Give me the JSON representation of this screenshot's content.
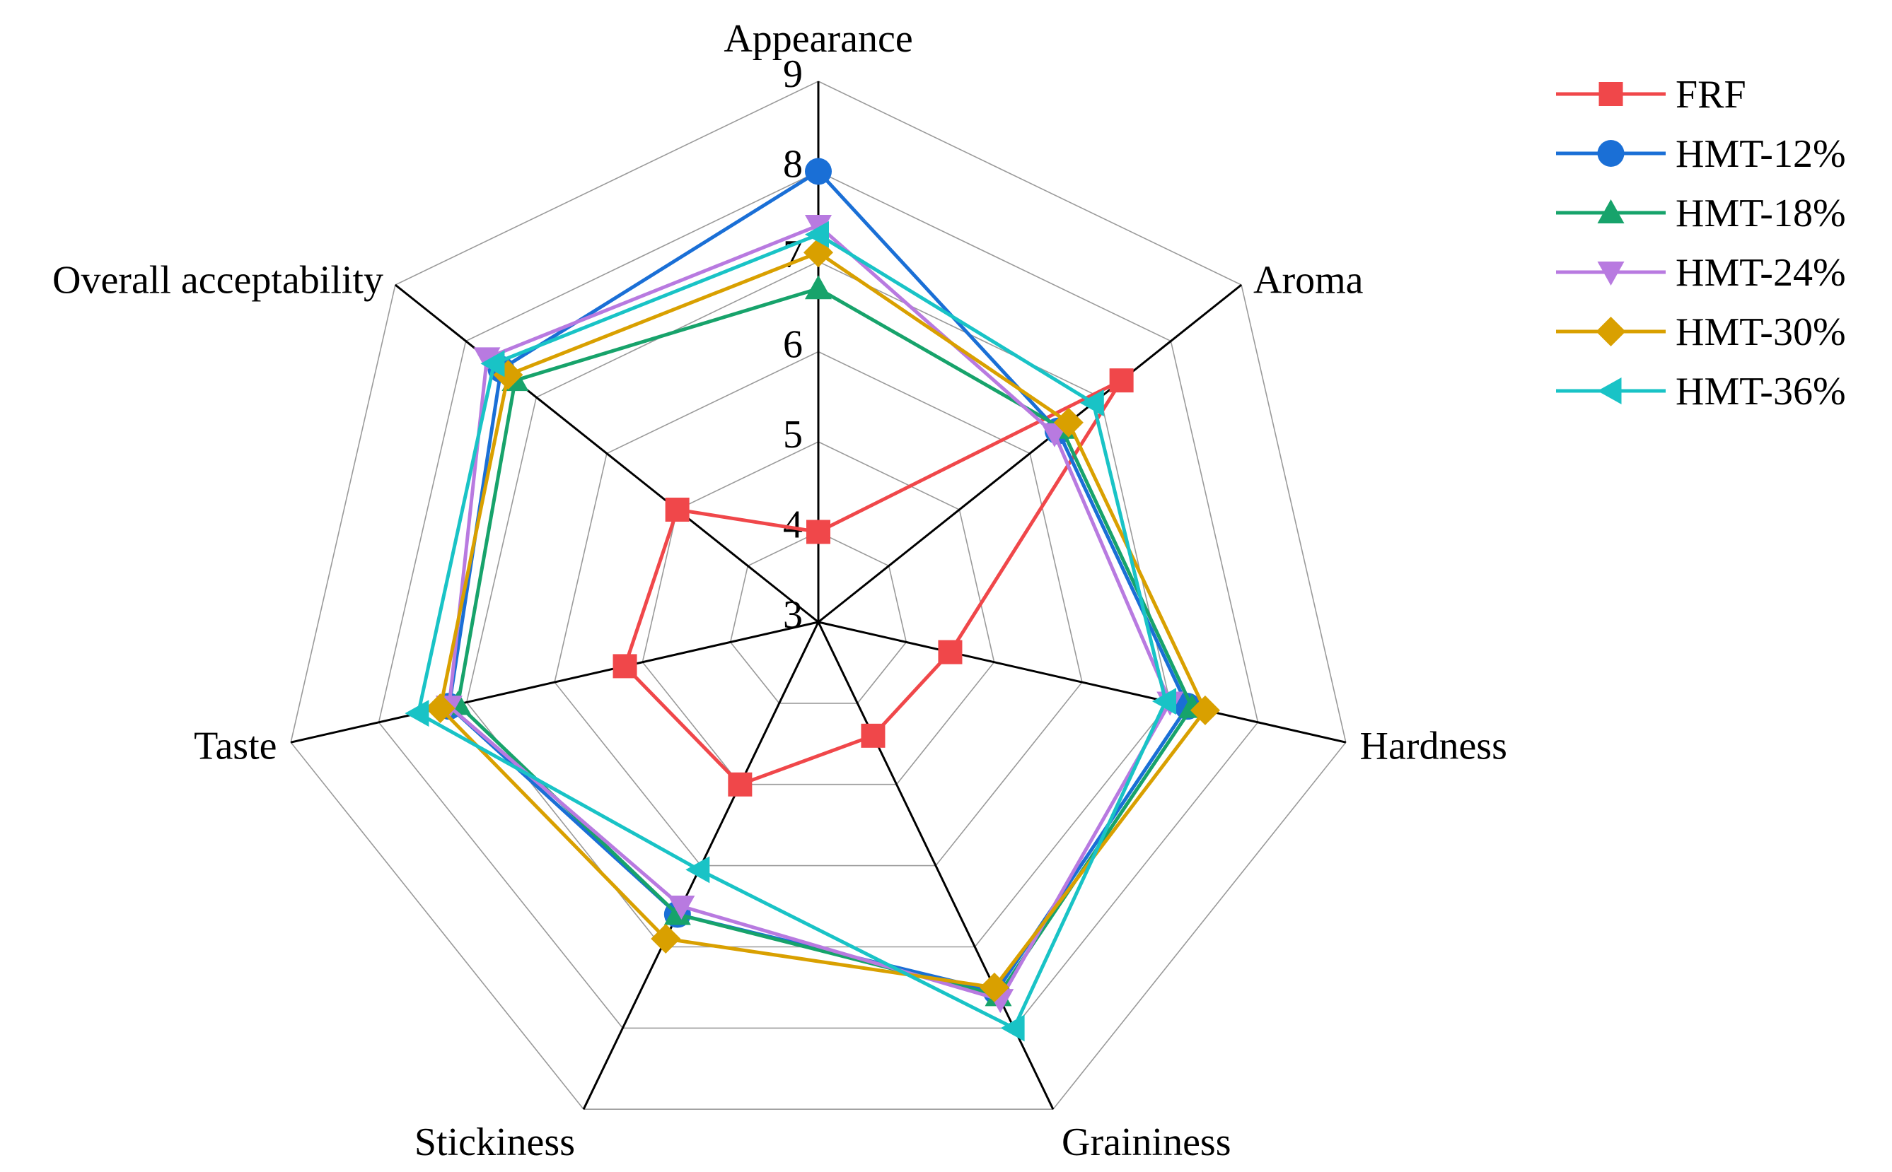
{
  "chart_data": {
    "type": "radar",
    "axes": [
      "Appearance",
      "Aroma",
      "Hardness",
      "Graininess",
      "Stickiness",
      "Taste",
      "Overall acceptability"
    ],
    "range": [
      3,
      9
    ],
    "ticks": [
      "3",
      "4",
      "5",
      "6",
      "7",
      "8",
      "9"
    ],
    "grid": true,
    "legend_position": "top-right",
    "series": [
      {
        "name": "FRF",
        "color": "#f0474a",
        "marker": "square",
        "values": [
          4.0,
          7.3,
          4.5,
          4.4,
          5.0,
          5.2,
          5.0
        ]
      },
      {
        "name": "HMT-12%",
        "color": "#1a6fd6",
        "marker": "circle",
        "values": [
          8.0,
          6.4,
          7.2,
          7.55,
          6.6,
          7.2,
          7.5
        ]
      },
      {
        "name": "HMT-18%",
        "color": "#17a36b",
        "marker": "triangle-up",
        "values": [
          6.7,
          6.45,
          7.25,
          7.6,
          6.6,
          7.1,
          7.3
        ]
      },
      {
        "name": "HMT-24%",
        "color": "#b87ae0",
        "marker": "triangle-down",
        "values": [
          7.4,
          6.35,
          7.0,
          7.65,
          6.5,
          7.2,
          7.7
        ]
      },
      {
        "name": "HMT-30%",
        "color": "#d9a000",
        "marker": "diamond",
        "values": [
          7.1,
          6.55,
          7.4,
          7.5,
          6.9,
          7.3,
          7.4
        ]
      },
      {
        "name": "HMT-36%",
        "color": "#19c3c6",
        "marker": "triangle-left",
        "values": [
          7.3,
          6.9,
          6.95,
          8.0,
          6.05,
          7.55,
          7.6
        ]
      }
    ]
  }
}
